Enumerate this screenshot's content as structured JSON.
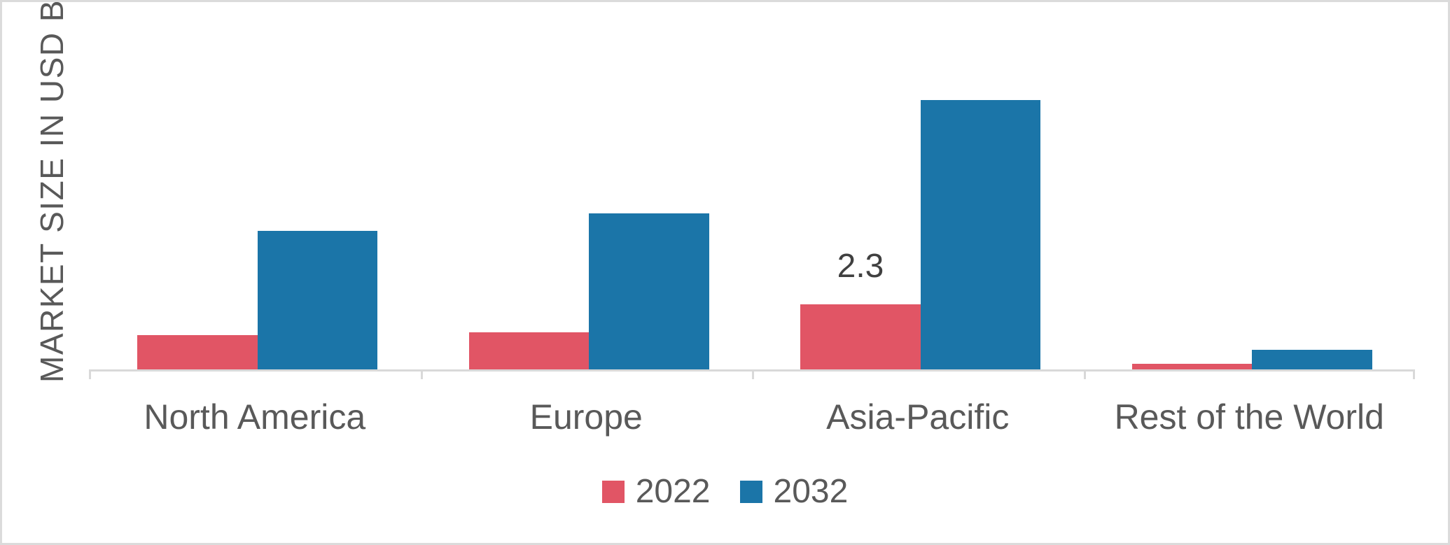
{
  "chart_data": {
    "type": "bar",
    "title": "",
    "ylabel": "MARKET SIZE IN USD BN",
    "xlabel": "",
    "categories": [
      "North America",
      "Europe",
      "Asia-Pacific",
      "Rest of the World"
    ],
    "series": [
      {
        "name": "2022",
        "color": "#e15565",
        "values": [
          1.2,
          1.3,
          2.3,
          0.2
        ]
      },
      {
        "name": "2032",
        "color": "#1b75a8",
        "values": [
          4.9,
          5.5,
          9.5,
          0.7
        ]
      }
    ],
    "ylim": [
      0,
      10.5
    ],
    "grid": false,
    "y_axis_ticks_visible": false,
    "legend_position": "bottom",
    "data_labels": [
      {
        "category": "Asia-Pacific",
        "series": "2022",
        "text": "2.3"
      }
    ],
    "colors": {
      "axis": "#d9d9d9",
      "category_text": "#595959",
      "axis_title_text": "#595959",
      "data_label_text": "#404040",
      "frame_border": "#dbdbdb"
    }
  }
}
